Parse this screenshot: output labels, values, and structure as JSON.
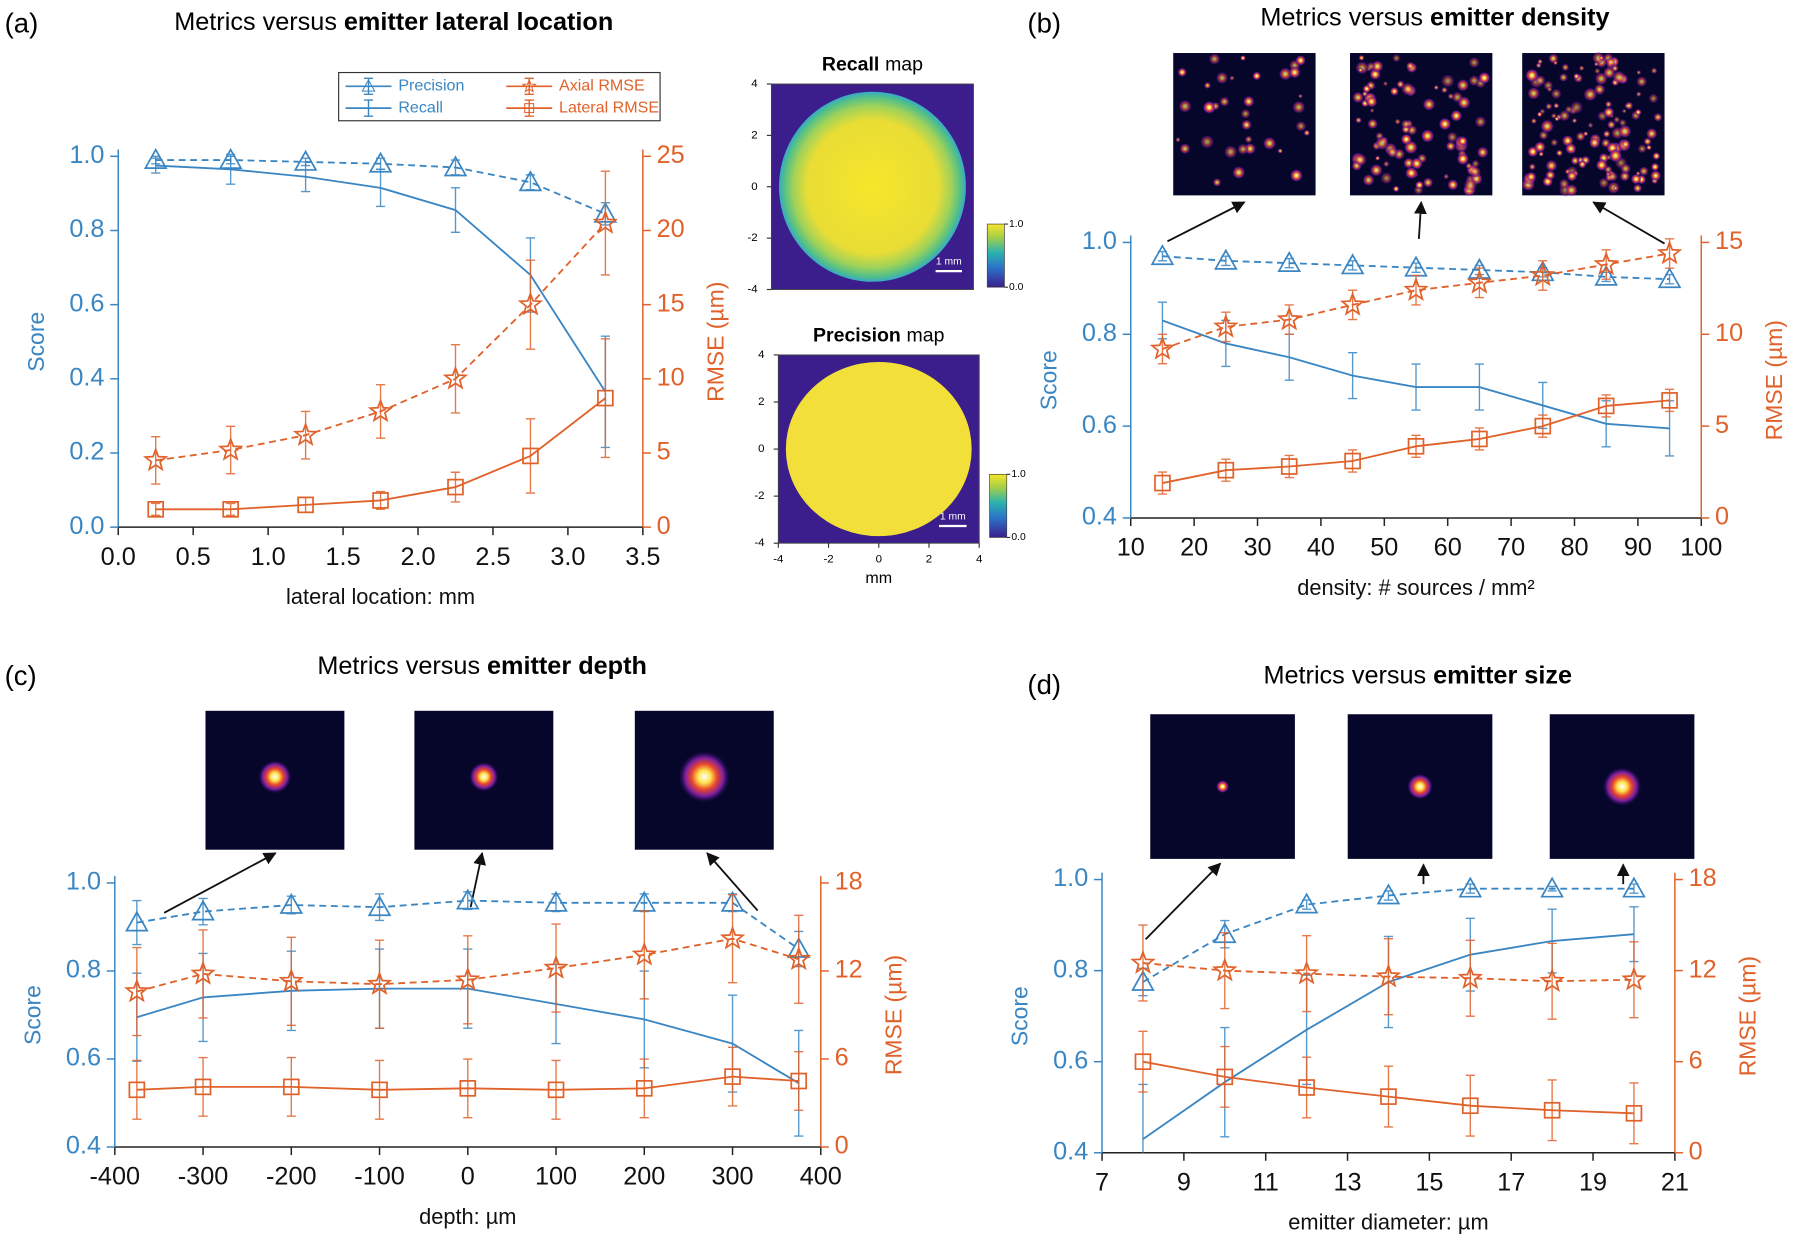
{
  "chart_data": [
    {
      "type": "line",
      "panel_label": "(a)",
      "title": [
        "Metrics versus",
        "emitter lateral location"
      ],
      "xlabel": "lateral location: mm",
      "ylabel": "Score",
      "y2label": "RMSE (µm)",
      "x": [
        0.25,
        0.75,
        1.25,
        1.75,
        2.25,
        2.75,
        3.25
      ],
      "xlim": [
        0,
        3.5
      ],
      "xticks": [
        {
          "value": 0,
          "label": "0.0"
        },
        0.5,
        {
          "value": 1,
          "label": "1.0"
        },
        1.5,
        {
          "value": 2,
          "label": "2.0"
        },
        2.5,
        {
          "value": 3,
          "label": "3.0"
        },
        3.5
      ],
      "ylim": [
        0,
        1
      ],
      "yticks": [
        {
          "value": 0,
          "label": "0.0"
        },
        0.2,
        0.4,
        0.6,
        0.8,
        {
          "value": 1,
          "label": "1.0"
        }
      ],
      "y2lim": [
        0,
        25
      ],
      "y2ticks": [
        0,
        5,
        10,
        15,
        20,
        25
      ],
      "legend": true,
      "legend_loc": "upper center",
      "series": [
        {
          "name": "Precision",
          "color": "#3a86c3",
          "linestyle": "dashed",
          "marker": "triangle",
          "values": [
            0.99,
            0.99,
            0.985,
            0.98,
            0.97,
            0.93,
            0.845
          ],
          "errors": [
            0.01,
            0.01,
            0.01,
            0.015,
            0.02,
            0.02,
            0.03
          ]
        },
        {
          "name": "Recall",
          "color": "#3a86c3",
          "linestyle": "solid",
          "marker": "none",
          "values": [
            0.975,
            0.965,
            0.945,
            0.915,
            0.855,
            0.68,
            0.365
          ],
          "errors": [
            0.02,
            0.04,
            0.04,
            0.05,
            0.06,
            0.1,
            0.15
          ]
        },
        {
          "name": "Axial RMSE",
          "color": "#e0622a",
          "linestyle": "dashed",
          "marker": "star",
          "axis": "y2",
          "values": [
            4.5,
            5.2,
            6.2,
            7.8,
            10,
            15,
            20.5
          ],
          "errors": [
            1.6,
            1.6,
            1.6,
            1.8,
            2.3,
            3,
            3.5
          ]
        },
        {
          "name": "Lateral RMSE",
          "color": "#e0622a",
          "linestyle": "solid",
          "marker": "square",
          "axis": "y2",
          "values": [
            1.2,
            1.2,
            1.5,
            1.8,
            2.7,
            4.8,
            8.7
          ],
          "errors": [
            0.4,
            0.4,
            0.5,
            0.6,
            1,
            2.5,
            4
          ]
        }
      ]
    },
    {
      "type": "line",
      "panel_label": "(b)",
      "title": [
        "Metrics versus",
        "emitter density"
      ],
      "xlabel": "density: # sources / mm²",
      "ylabel": "Score",
      "y2label": "RMSE (µm)",
      "x": [
        15,
        25,
        35,
        45,
        55,
        65,
        75,
        85,
        95
      ],
      "xlim": [
        10,
        100
      ],
      "xticks": [
        10,
        20,
        30,
        40,
        50,
        60,
        70,
        80,
        90,
        100
      ],
      "ylim": [
        0.4,
        1
      ],
      "yticks": [
        0.4,
        0.6,
        0.8,
        {
          "value": 1,
          "label": "1.0"
        }
      ],
      "y2lim": [
        0,
        15
      ],
      "y2ticks": [
        0,
        5,
        10,
        15
      ],
      "legend": false,
      "series": [
        {
          "name": "Precision",
          "color": "#3a86c3",
          "linestyle": "dashed",
          "marker": "triangle",
          "values": [
            0.97,
            0.96,
            0.955,
            0.95,
            0.945,
            0.94,
            0.935,
            0.925,
            0.92
          ],
          "errors": [
            0.01,
            0.01,
            0.01,
            0.01,
            0.01,
            0.01,
            0.01,
            0.01,
            0.01
          ]
        },
        {
          "name": "Recall",
          "color": "#3a86c3",
          "linestyle": "solid",
          "marker": "none",
          "values": [
            0.83,
            0.78,
            0.75,
            0.71,
            0.685,
            0.685,
            0.645,
            0.605,
            0.595
          ],
          "errors": [
            0.04,
            0.05,
            0.05,
            0.05,
            0.05,
            0.05,
            0.05,
            0.05,
            0.06
          ]
        },
        {
          "name": "Axial RMSE",
          "color": "#e0622a",
          "linestyle": "dashed",
          "marker": "star",
          "axis": "y2",
          "values": [
            9.2,
            10.4,
            10.8,
            11.6,
            12.4,
            12.8,
            13.2,
            13.8,
            14.4
          ],
          "errors": [
            0.8,
            0.8,
            0.8,
            0.8,
            0.8,
            0.8,
            0.8,
            0.8,
            0.8
          ]
        },
        {
          "name": "Lateral RMSE",
          "color": "#e0622a",
          "linestyle": "solid",
          "marker": "square",
          "axis": "y2",
          "values": [
            1.9,
            2.6,
            2.8,
            3.1,
            3.9,
            4.3,
            5.0,
            6.1,
            6.4
          ],
          "errors": [
            0.6,
            0.6,
            0.6,
            0.6,
            0.6,
            0.6,
            0.6,
            0.6,
            0.6
          ]
        }
      ]
    },
    {
      "type": "line",
      "panel_label": "(c)",
      "title": [
        "Metrics versus",
        "emitter depth"
      ],
      "xlabel": "depth: µm",
      "ylabel": "Score",
      "y2label": "RMSE (µm)",
      "x": [
        -375,
        -300,
        -200,
        -100,
        0,
        100,
        200,
        300,
        375
      ],
      "xlim": [
        -400,
        400
      ],
      "xticks": [
        -400,
        -300,
        -200,
        -100,
        0,
        100,
        200,
        300,
        400
      ],
      "ylim": [
        0.4,
        1
      ],
      "yticks": [
        0.4,
        0.6,
        0.8,
        {
          "value": 1,
          "label": "1.0"
        }
      ],
      "y2lim": [
        0,
        18
      ],
      "y2ticks": [
        0,
        6,
        12,
        18
      ],
      "legend": false,
      "series": [
        {
          "name": "Precision",
          "color": "#3a86c3",
          "linestyle": "dashed",
          "marker": "triangle",
          "values": [
            0.91,
            0.935,
            0.95,
            0.945,
            0.96,
            0.955,
            0.955,
            0.955,
            0.85
          ],
          "errors": [
            0.05,
            0.03,
            0.02,
            0.03,
            0.02,
            0.02,
            0.02,
            0.02,
            0.04
          ]
        },
        {
          "name": "Recall",
          "color": "#3a86c3",
          "linestyle": "solid",
          "marker": "none",
          "values": [
            0.695,
            0.74,
            0.755,
            0.76,
            0.76,
            0.725,
            0.69,
            0.635,
            0.545
          ],
          "errors": [
            0.1,
            0.1,
            0.09,
            0.09,
            0.09,
            0.09,
            0.11,
            0.11,
            0.12
          ]
        },
        {
          "name": "Axial RMSE",
          "color": "#e0622a",
          "linestyle": "dashed",
          "marker": "star",
          "axis": "y2",
          "values": [
            10.6,
            11.8,
            11.3,
            11.1,
            11.4,
            12.2,
            13.1,
            14.2,
            12.8
          ],
          "errors": [
            3,
            3,
            3,
            3,
            3,
            3,
            3,
            3,
            3
          ]
        },
        {
          "name": "Lateral RMSE",
          "color": "#e0622a",
          "linestyle": "solid",
          "marker": "square",
          "axis": "y2",
          "values": [
            3.9,
            4.1,
            4.1,
            3.9,
            4.0,
            3.9,
            4.0,
            4.8,
            4.5
          ],
          "errors": [
            2,
            2,
            2,
            2,
            2,
            2,
            2,
            2,
            2
          ]
        }
      ]
    },
    {
      "type": "line",
      "panel_label": "(d)",
      "title": [
        "Metrics versus",
        "emitter size"
      ],
      "xlabel": "emitter diameter: µm",
      "ylabel": "Score",
      "y2label": "RMSE (µm)",
      "x": [
        8,
        10,
        12,
        14,
        16,
        18,
        20
      ],
      "xlim": [
        7,
        21
      ],
      "xticks": [
        7,
        9,
        11,
        13,
        15,
        17,
        19,
        21
      ],
      "ylim": [
        0.4,
        1
      ],
      "yticks": [
        0.4,
        0.6,
        0.8,
        {
          "value": 1,
          "label": "1.0"
        }
      ],
      "y2lim": [
        0,
        18
      ],
      "y2ticks": [
        0,
        6,
        12,
        18
      ],
      "legend": false,
      "series": [
        {
          "name": "Precision",
          "color": "#3a86c3",
          "linestyle": "dashed",
          "marker": "triangle",
          "values": [
            0.775,
            0.88,
            0.945,
            0.965,
            0.98,
            0.98,
            0.98
          ],
          "errors": [
            0.03,
            0.03,
            0.01,
            0.01,
            0.01,
            0.005,
            0.01
          ]
        },
        {
          "name": "Recall",
          "color": "#3a86c3",
          "linestyle": "solid",
          "marker": "none",
          "values": [
            0.43,
            0.555,
            0.67,
            0.775,
            0.835,
            0.865,
            0.88
          ],
          "errors": [
            0.12,
            0.12,
            0.12,
            0.1,
            0.08,
            0.07,
            0.06
          ]
        },
        {
          "name": "Axial RMSE",
          "color": "#e0622a",
          "linestyle": "dashed",
          "marker": "star",
          "axis": "y2",
          "values": [
            12.5,
            12,
            11.8,
            11.6,
            11.5,
            11.3,
            11.4
          ],
          "errors": [
            2.5,
            2.5,
            2.5,
            2.5,
            2.5,
            2.5,
            2.5
          ]
        },
        {
          "name": "Lateral RMSE",
          "color": "#e0622a",
          "linestyle": "solid",
          "marker": "square",
          "axis": "y2",
          "values": [
            6,
            5,
            4.3,
            3.7,
            3.1,
            2.8,
            2.6
          ],
          "errors": [
            2,
            2,
            2,
            2,
            2,
            2,
            2
          ]
        }
      ]
    }
  ],
  "maps": [
    {
      "title": [
        "Recall",
        "map"
      ],
      "yticks": [
        -4,
        -2,
        0,
        2,
        4
      ],
      "extent": [
        -4,
        4
      ],
      "colorbar_ticks": [
        {
          "value": 1,
          "label": "1.0"
        },
        {
          "value": 0,
          "label": "0.0"
        }
      ],
      "scale_bar": "1 mm"
    },
    {
      "title": [
        "Precision",
        "map"
      ],
      "xticks": [
        -4,
        -2,
        0,
        2,
        4
      ],
      "yticks": [
        -4,
        -2,
        0,
        2,
        4
      ],
      "extent": [
        -4,
        4
      ],
      "xlabel": "mm",
      "colorbar_ticks": [
        {
          "value": 1,
          "label": "1.0"
        },
        {
          "value": 0,
          "label": "0.0"
        }
      ],
      "scale_bar": "1 mm"
    }
  ]
}
